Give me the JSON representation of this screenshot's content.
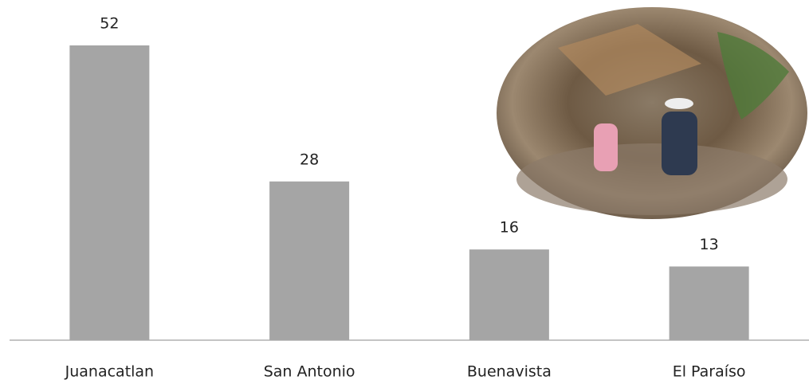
{
  "chart_data": {
    "type": "bar",
    "categories": [
      "Juanacatlan",
      "San Antonio",
      "Buenavista",
      "El Paraíso"
    ],
    "values": [
      52,
      28,
      16,
      13
    ],
    "color": "#a5a5a5"
  }
}
